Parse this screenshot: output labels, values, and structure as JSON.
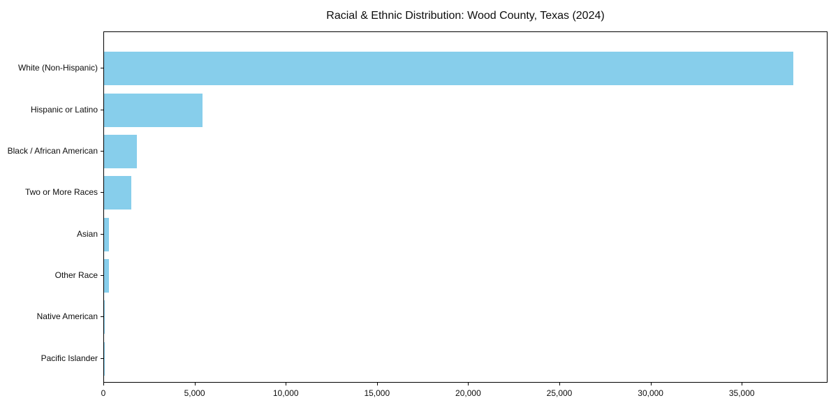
{
  "chart_data": {
    "type": "bar",
    "orientation": "horizontal",
    "title": "Racial & Ethnic Distribution: Wood County, Texas (2024)",
    "categories": [
      "White (Non-Hispanic)",
      "Hispanic or Latino",
      "Black / African American",
      "Two or More Races",
      "Asian",
      "Other Race",
      "Native American",
      "Pacific Islander"
    ],
    "values": [
      37850,
      5400,
      1790,
      1480,
      280,
      255,
      50,
      20
    ],
    "xlabel": "",
    "ylabel": "",
    "xlim": [
      0,
      39700
    ],
    "x_ticks": [
      0,
      5000,
      10000,
      15000,
      20000,
      25000,
      30000,
      35000
    ],
    "x_tick_labels": [
      "0",
      "5,000",
      "10,000",
      "15,000",
      "20,000",
      "25,000",
      "30,000",
      "35,000"
    ],
    "bar_color": "#87CEEB",
    "grid": false,
    "legend": "none",
    "category_order": "largest value at top"
  }
}
